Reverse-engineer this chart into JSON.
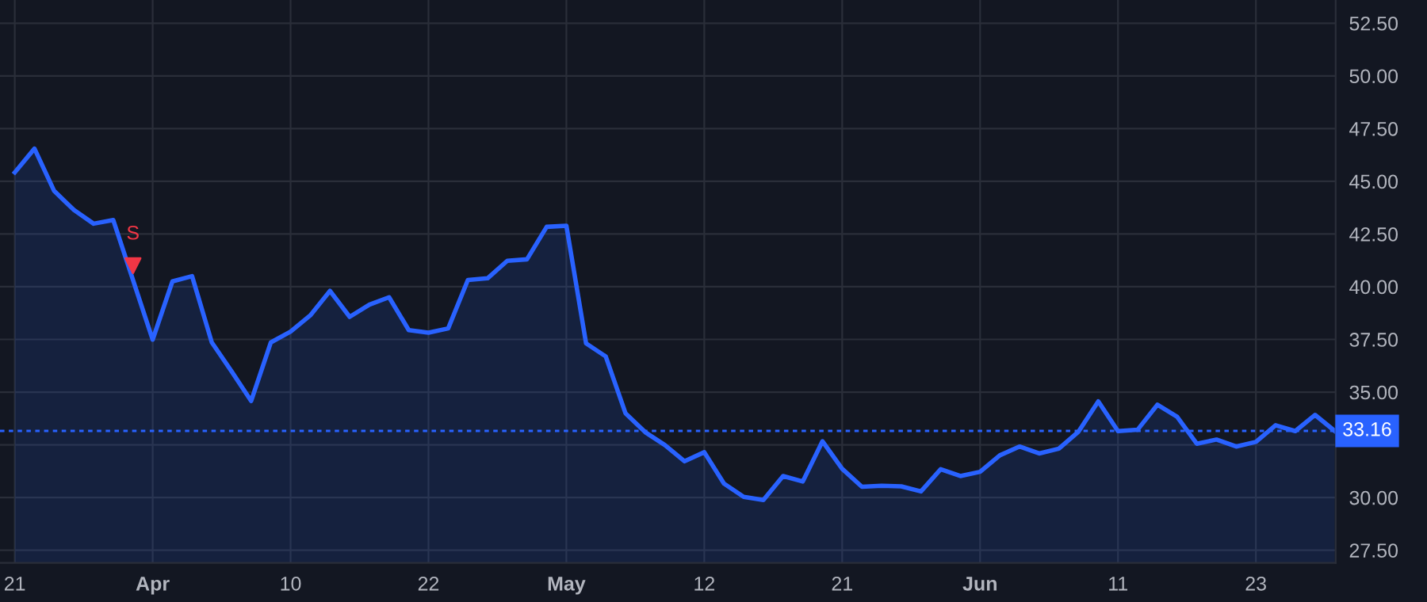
{
  "chart_data": {
    "type": "area",
    "categories": [
      "21",
      null,
      null,
      null,
      null,
      null,
      null,
      "Apr",
      null,
      null,
      null,
      null,
      null,
      null,
      "10",
      null,
      null,
      null,
      null,
      null,
      null,
      "22",
      null,
      null,
      null,
      null,
      null,
      null,
      "May",
      null,
      null,
      null,
      null,
      null,
      null,
      "12",
      null,
      null,
      null,
      null,
      null,
      null,
      "21",
      null,
      null,
      null,
      null,
      null,
      null,
      "Jun",
      null,
      null,
      null,
      null,
      null,
      null,
      "11",
      null,
      null,
      null,
      null,
      null,
      null,
      "23",
      null,
      null,
      null,
      null
    ],
    "series": [
      {
        "color": "#2962ff",
        "values": [
          45.42,
          46.55,
          44.54,
          43.64,
          42.99,
          43.16,
          40.32,
          37.49,
          40.25,
          40.5,
          37.36,
          35.99,
          34.58,
          37.36,
          37.87,
          38.64,
          39.8,
          38.57,
          39.15,
          39.5,
          37.94,
          37.82,
          38.02,
          40.32,
          40.4,
          41.23,
          41.3,
          42.84,
          42.89,
          37.31,
          36.69,
          34.0,
          33.1,
          32.49,
          31.72,
          32.15,
          30.66,
          30.03,
          29.88,
          31.02,
          30.76,
          32.67,
          31.36,
          30.51,
          30.56,
          30.53,
          30.29,
          31.34,
          31.02,
          31.22,
          32.0,
          32.42,
          32.09,
          32.32,
          33.13,
          34.56,
          33.15,
          33.22,
          34.4,
          33.83,
          32.55,
          32.75,
          32.42,
          32.64,
          33.43,
          33.15,
          33.92,
          33.16
        ]
      },
      {
        "type": "scatter",
        "color": "#f23645",
        "marker": "triangle",
        "values": [
          null,
          null,
          null,
          null,
          null,
          null,
          41.0,
          null,
          null,
          null,
          null,
          null,
          null,
          null,
          null,
          null,
          null,
          null,
          null,
          null,
          null,
          null,
          null,
          null,
          null,
          null,
          null,
          null,
          null,
          null,
          null,
          null,
          null,
          null,
          null,
          null,
          null,
          null,
          null,
          null,
          null,
          null,
          null,
          null,
          null,
          null,
          null,
          null,
          null,
          null,
          null,
          null,
          null,
          null,
          null,
          null,
          null,
          null,
          null,
          null,
          null,
          null,
          null,
          null,
          null,
          null,
          null,
          null
        ]
      }
    ],
    "annotations": [
      "S"
    ],
    "ylim": [
      26.9,
      53.6
    ],
    "yticks": [
      {
        "value": 27.5,
        "label": "27.50"
      },
      {
        "value": 30,
        "label": "30.00"
      },
      {
        "value": 32.5,
        "label": null
      },
      {
        "value": 35,
        "label": "35.00"
      },
      {
        "value": 37.5,
        "label": "37.50"
      },
      {
        "value": 40,
        "label": "40.00"
      },
      {
        "value": 42.5,
        "label": "42.50"
      },
      {
        "value": 45,
        "label": "45.00"
      },
      {
        "value": 47.5,
        "label": "47.50"
      },
      {
        "value": 50,
        "label": "50.00"
      },
      {
        "value": 52.5,
        "label": "52.50"
      }
    ],
    "ref_lines": [
      {
        "axis": "y",
        "value": 33.16,
        "label": "33.16",
        "color": "#2962ff",
        "line_style": "dotted"
      }
    ],
    "grid": true,
    "legend": false
  }
}
